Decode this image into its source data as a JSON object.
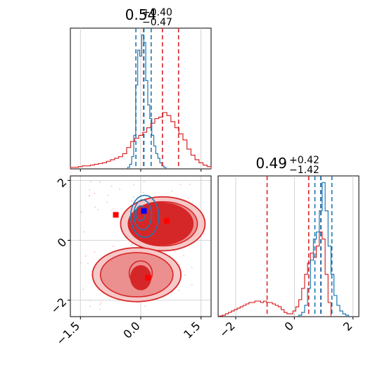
{
  "chart_data": {
    "type": "corner",
    "colors": {
      "red": "#d62728",
      "blue": "#1f77b4",
      "grid": "#c8c8c8",
      "red_fill_outer": "#f6c8c8",
      "red_fill_mid": "#ec8f8f",
      "red_fill_inner": "#d62728"
    },
    "panels": [
      {
        "id": "hist_param1",
        "type": "histogram",
        "title": {
          "value": "0.54",
          "plus": "+0.40",
          "minus": "−0.47"
        },
        "xlim": [
          -1.75,
          1.75
        ],
        "grid": true,
        "red_hist": {
          "centers": [
            -1.7,
            -1.6,
            -1.5,
            -1.4,
            -1.3,
            -1.2,
            -1.1,
            -1.0,
            -0.9,
            -0.8,
            -0.7,
            -0.6,
            -0.5,
            -0.4,
            -0.3,
            -0.2,
            -0.1,
            0.0,
            0.1,
            0.2,
            0.3,
            0.4,
            0.5,
            0.6,
            0.7,
            0.8,
            0.9,
            1.0,
            1.1,
            1.2,
            1.3,
            1.4,
            1.5,
            1.6,
            1.7
          ],
          "values": [
            0.01,
            0.01,
            0.015,
            0.02,
            0.02,
            0.025,
            0.03,
            0.035,
            0.04,
            0.05,
            0.06,
            0.07,
            0.08,
            0.1,
            0.14,
            0.18,
            0.2,
            0.22,
            0.24,
            0.27,
            0.3,
            0.33,
            0.34,
            0.37,
            0.35,
            0.31,
            0.27,
            0.23,
            0.19,
            0.13,
            0.09,
            0.06,
            0.04,
            0.025,
            0.015
          ]
        },
        "blue_hist": {
          "centers": [
            -0.3,
            -0.25,
            -0.2,
            -0.15,
            -0.1,
            -0.05,
            0.0,
            0.05,
            0.1,
            0.15,
            0.2,
            0.25,
            0.3,
            0.35,
            0.4,
            0.45,
            0.5,
            0.55,
            0.6
          ],
          "values": [
            0.01,
            0.03,
            0.08,
            0.22,
            0.55,
            0.78,
            0.74,
            0.88,
            0.83,
            0.58,
            0.42,
            0.33,
            0.22,
            0.15,
            0.1,
            0.07,
            0.04,
            0.02,
            0.01
          ]
        },
        "red_quantiles": [
          0.07,
          0.54,
          0.94
        ],
        "blue_quantiles": [
          -0.12,
          0.08,
          0.26
        ]
      },
      {
        "id": "hist_param2",
        "type": "histogram",
        "title": {
          "value": "0.49",
          "plus": "+0.42",
          "minus": "−1.42"
        },
        "xlim": [
          -2.6,
          2.2
        ],
        "xticks": [
          "−2",
          "0",
          "2"
        ],
        "xtick_values": [
          -2,
          0,
          2
        ],
        "grid": true,
        "red_hist": {
          "centers": [
            -2.5,
            -2.4,
            -2.3,
            -2.2,
            -2.1,
            -2.0,
            -1.9,
            -1.8,
            -1.7,
            -1.6,
            -1.5,
            -1.4,
            -1.3,
            -1.2,
            -1.1,
            -1.0,
            -0.9,
            -0.8,
            -0.7,
            -0.6,
            -0.5,
            -0.4,
            -0.3,
            -0.2,
            -0.1,
            0.0,
            0.1,
            0.2,
            0.3,
            0.4,
            0.5,
            0.6,
            0.7,
            0.8,
            0.9,
            1.0,
            1.1,
            1.2
          ],
          "values": [
            0.005,
            0.01,
            0.02,
            0.03,
            0.04,
            0.05,
            0.06,
            0.07,
            0.08,
            0.09,
            0.1,
            0.1,
            0.11,
            0.11,
            0.1,
            0.11,
            0.1,
            0.1,
            0.09,
            0.08,
            0.07,
            0.05,
            0.03,
            0.02,
            0.02,
            0.04,
            0.07,
            0.12,
            0.2,
            0.3,
            0.38,
            0.45,
            0.42,
            0.5,
            0.6,
            0.55,
            0.3,
            0.1
          ]
        },
        "blue_hist": {
          "centers": [
            0.2,
            0.3,
            0.4,
            0.5,
            0.6,
            0.7,
            0.8,
            0.9,
            1.0,
            1.1,
            1.2,
            1.3,
            1.4,
            1.5,
            1.6,
            1.7,
            1.8
          ],
          "values": [
            0.01,
            0.03,
            0.08,
            0.2,
            0.4,
            0.55,
            0.6,
            0.75,
            0.95,
            0.75,
            0.5,
            0.3,
            0.15,
            0.08,
            0.04,
            0.02,
            0.01
          ]
        },
        "red_quantiles": [
          -0.93,
          0.49,
          0.91
        ],
        "blue_quantiles": [
          0.7,
          0.9,
          1.28
        ]
      },
      {
        "id": "joint",
        "type": "contour",
        "xlim": [
          -1.75,
          1.75
        ],
        "ylim": [
          -2.55,
          2.15
        ],
        "xticks": [
          "−1.5",
          "0.0",
          "1.5"
        ],
        "xtick_values": [
          -1.5,
          0.0,
          1.5
        ],
        "yticks": [
          "−2",
          "0",
          "2"
        ],
        "ytick_values": [
          -2,
          0,
          2
        ],
        "grid": true,
        "red_blobs": [
          {
            "cx": 0.55,
            "cy": 0.55,
            "rx": 1.05,
            "ry": 0.9
          },
          {
            "cx": -0.1,
            "cy": -1.15,
            "rx": 1.1,
            "ry": 0.9
          },
          {
            "cx": 0.0,
            "cy": -1.1,
            "rx": 0.35,
            "ry": 0.5
          }
        ],
        "red_inner_blobs": [
          {
            "cx": 0.5,
            "cy": 0.55,
            "rx": 0.8,
            "ry": 0.7
          },
          {
            "cx": 0.0,
            "cy": -1.25,
            "rx": 0.25,
            "ry": 0.4
          }
        ],
        "blue_contours": [
          {
            "cx": 0.1,
            "cy": 0.8,
            "rx": 0.35,
            "ry": 0.7
          },
          {
            "cx": 0.05,
            "cy": 0.85,
            "rx": 0.22,
            "ry": 0.5
          },
          {
            "cx": 0.0,
            "cy": 0.9,
            "rx": 0.12,
            "ry": 0.25
          }
        ],
        "red_markers": [
          [
            -0.62,
            0.85
          ],
          [
            0.65,
            0.65
          ],
          [
            0.18,
            -1.25
          ]
        ],
        "blue_markers": [
          [
            0.08,
            0.98
          ]
        ],
        "pink_scatter_seed": 7
      }
    ]
  }
}
